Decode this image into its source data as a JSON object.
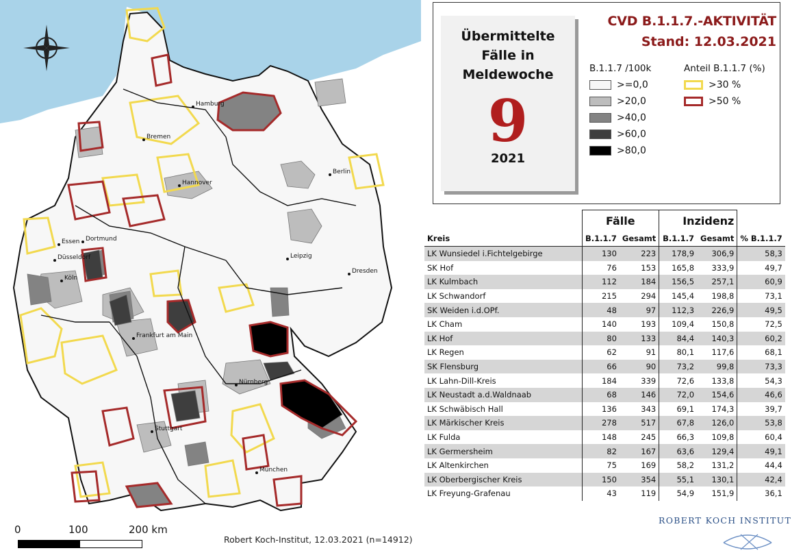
{
  "title": {
    "line1": "CVD B.1.1.7.-AKTIVITÄT",
    "line2": "Stand: 12.03.2021"
  },
  "week_box": {
    "line1": "Übermittelte",
    "line2": "Fälle in",
    "line3": "Meldewoche",
    "week": "9",
    "year": "2021"
  },
  "legend": {
    "incidence_title": "B.1.1.7  /100k",
    "incidence_classes": [
      {
        "label": ">=0,0",
        "color": "#f7f7f7"
      },
      {
        "label": ">20,0",
        "color": "#bdbdbd"
      },
      {
        "label": ">40,0",
        "color": "#838383"
      },
      {
        "label": ">60,0",
        "color": "#3e3e3e"
      },
      {
        "label": ">80,0",
        "color": "#000000"
      }
    ],
    "share_title": "Anteil B.1.1.7 (%)",
    "share_classes": [
      {
        "label": ">30 %",
        "color": "#f2d94e"
      },
      {
        "label": ">50 %",
        "color": "#a52a2a"
      }
    ]
  },
  "colors": {
    "sea": "#a9d3e9",
    "land": "#f7f7f7",
    "outside": "#ffffff",
    "title_red": "#8b1a1a",
    "week_red": "#b01e1e",
    "row_shade": "#d6d6d6"
  },
  "map": {
    "north_arrow_icon": "compass-rose-icon",
    "cities": [
      {
        "name": "Hamburg"
      },
      {
        "name": "Bremen"
      },
      {
        "name": "Berlin"
      },
      {
        "name": "Hannover"
      },
      {
        "name": "Essen"
      },
      {
        "name": "Dortmund"
      },
      {
        "name": "Düsseldorf"
      },
      {
        "name": "Köln"
      },
      {
        "name": "Leipzig"
      },
      {
        "name": "Dresden"
      },
      {
        "name": "Frankfurt am Main"
      },
      {
        "name": "Nürnberg"
      },
      {
        "name": "Stuttgart"
      },
      {
        "name": "München"
      }
    ],
    "scale": {
      "t0": "0",
      "t1": "100",
      "t2": "200 km"
    },
    "credit": "Robert Koch-Institut, 12.03.2021 (n=14912)"
  },
  "table": {
    "group_headers": {
      "cases": "Fälle",
      "incidence": "Inzidenz"
    },
    "columns": [
      "Kreis",
      "B.1.1.7",
      "Gesamt",
      "B.1.1.7",
      "Gesamt",
      "% B.1.1.7"
    ],
    "rows": [
      [
        "LK Wunsiedel i.Fichtelgebirge",
        "130",
        "223",
        "178,9",
        "306,9",
        "58,3"
      ],
      [
        "SK Hof",
        "76",
        "153",
        "165,8",
        "333,9",
        "49,7"
      ],
      [
        "LK Kulmbach",
        "112",
        "184",
        "156,5",
        "257,1",
        "60,9"
      ],
      [
        "LK Schwandorf",
        "215",
        "294",
        "145,4",
        "198,8",
        "73,1"
      ],
      [
        "SK Weiden i.d.OPf.",
        "48",
        "97",
        "112,3",
        "226,9",
        "49,5"
      ],
      [
        "LK Cham",
        "140",
        "193",
        "109,4",
        "150,8",
        "72,5"
      ],
      [
        "LK Hof",
        "80",
        "133",
        "84,4",
        "140,3",
        "60,2"
      ],
      [
        "LK Regen",
        "62",
        "91",
        "80,1",
        "117,6",
        "68,1"
      ],
      [
        "SK Flensburg",
        "66",
        "90",
        "73,2",
        "99,8",
        "73,3"
      ],
      [
        "LK Lahn-Dill-Kreis",
        "184",
        "339",
        "72,6",
        "133,8",
        "54,3"
      ],
      [
        "LK Neustadt a.d.Waldnaab",
        "68",
        "146",
        "72,0",
        "154,6",
        "46,6"
      ],
      [
        "LK Schwäbisch Hall",
        "136",
        "343",
        "69,1",
        "174,3",
        "39,7"
      ],
      [
        "LK Märkischer Kreis",
        "278",
        "517",
        "67,8",
        "126,0",
        "53,8"
      ],
      [
        "LK Fulda",
        "148",
        "245",
        "66,3",
        "109,8",
        "60,4"
      ],
      [
        "LK Germersheim",
        "82",
        "167",
        "63,6",
        "129,4",
        "49,1"
      ],
      [
        "LK Altenkirchen",
        "75",
        "169",
        "58,2",
        "131,2",
        "44,4"
      ],
      [
        "LK Oberbergischer Kreis",
        "150",
        "354",
        "55,1",
        "130,1",
        "42,4"
      ],
      [
        "LK Freyung-Grafenau",
        "43",
        "119",
        "54,9",
        "151,9",
        "36,1"
      ]
    ]
  },
  "logo": {
    "text": "ROBERT KOCH INSTITUT"
  }
}
